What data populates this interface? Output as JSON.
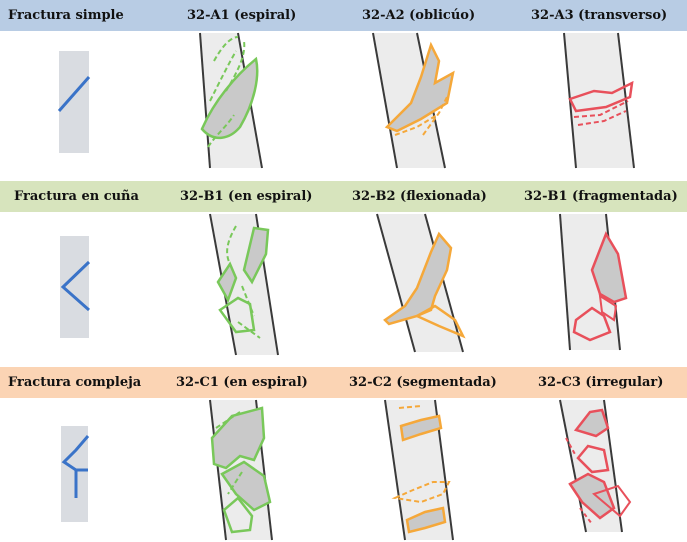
{
  "colors": {
    "band_a": "#b8cce4",
    "band_b": "#d7e4bd",
    "band_c": "#fbd4b4",
    "bone_fill": "#ececec",
    "bone_edge": "#3a3a3a",
    "schematic_fill": "#d9dce1",
    "schematic_line": "#3a73c8",
    "green": "#79c85a",
    "orange": "#f5a83a",
    "red": "#e8505b",
    "fragment_fill": "#c9c9c9"
  },
  "rows": [
    {
      "group_label": "Fractura simple",
      "schematic": "single-oblique-line",
      "color_key": "green/orange/red",
      "types": [
        "32-A1 (espiral)",
        "32-A2 (oblicúo)",
        "32-A3 (transverso)"
      ]
    },
    {
      "group_label": "Fractura en cuña",
      "schematic": "wedge-chevron",
      "types": [
        "32-B1 (en espiral)",
        "32-B2 (flexionada)",
        "32-B1 (fragmentada)"
      ]
    },
    {
      "group_label": "Fractura compleja",
      "schematic": "y-branch",
      "types": [
        "32-C1 (en espiral)",
        "32-C2 (segmentada)",
        "32-C3 (irregular)"
      ]
    }
  ]
}
